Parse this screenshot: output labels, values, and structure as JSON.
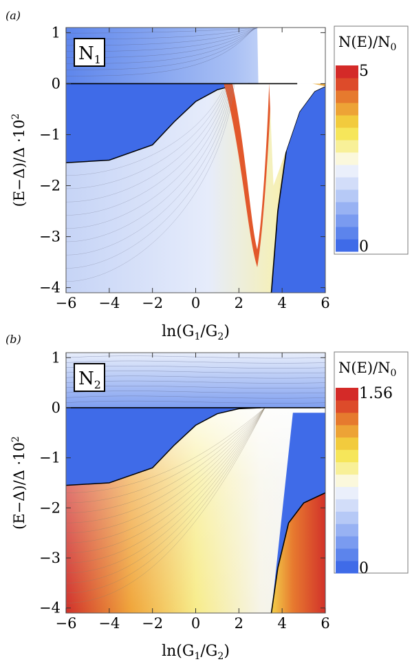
{
  "chart_data": [
    {
      "type": "heatmap",
      "panel_label": "(a)",
      "inset_label": "N",
      "inset_sub": "1",
      "xlabel": {
        "pre": "ln(G",
        "s1": "1",
        "mid": "/G",
        "s2": "2",
        "post": ")"
      },
      "ylabel": {
        "pre": "(E−Δ)/Δ ·10",
        "sup": "2"
      },
      "xlim": [
        -6,
        6
      ],
      "ylim": [
        -4.1,
        1.1
      ],
      "xticks": [
        -6,
        -4,
        -2,
        0,
        2,
        4,
        6
      ],
      "xtick_labels": [
        "−6",
        "−4",
        "−2",
        "0",
        "2",
        "4",
        "6"
      ],
      "yticks": [
        1,
        0,
        -1,
        -2,
        -3,
        -4
      ],
      "ytick_labels": [
        "1",
        "0",
        "−1",
        "−2",
        "−3",
        "−4"
      ],
      "colorbar": {
        "title_pre": "N(E)/N",
        "title_sub": "0",
        "min_label": "0",
        "max_label": "5",
        "min": 0,
        "max": 5
      },
      "gap_boundary": [
        {
          "x": -6,
          "y": -1.55
        },
        {
          "x": -4,
          "y": -1.5
        },
        {
          "x": -2,
          "y": -1.2
        },
        {
          "x": -1,
          "y": -0.75
        },
        {
          "x": 0,
          "y": -0.35
        },
        {
          "x": 1,
          "y": -0.12
        },
        {
          "x": 1.8,
          "y": -0.03
        },
        {
          "x": 2.5,
          "y": 0
        }
      ],
      "singular_region_min": {
        "x": 2.85,
        "y": -3.25
      },
      "right_gap_edge": [
        {
          "x": 3.5,
          "y": -4.1
        },
        {
          "x": 3.8,
          "y": -2.5
        },
        {
          "x": 4.2,
          "y": -1.3
        },
        {
          "x": 4.8,
          "y": -0.55
        },
        {
          "x": 5.5,
          "y": -0.15
        },
        {
          "x": 6,
          "y": -0.05
        }
      ]
    },
    {
      "type": "heatmap",
      "panel_label": "(b)",
      "inset_label": "N",
      "inset_sub": "2",
      "xlabel": {
        "pre": "ln(G",
        "s1": "1",
        "mid": "/G",
        "s2": "2",
        "post": ")"
      },
      "ylabel": {
        "pre": "(E−Δ)/Δ ·10",
        "sup": "2"
      },
      "xlim": [
        -6,
        6
      ],
      "ylim": [
        -4.1,
        1.1
      ],
      "xticks": [
        -6,
        -4,
        -2,
        0,
        2,
        4,
        6
      ],
      "xtick_labels": [
        "−6",
        "−4",
        "−2",
        "0",
        "2",
        "4",
        "6"
      ],
      "yticks": [
        1,
        0,
        -1,
        -2,
        -3,
        -4
      ],
      "ytick_labels": [
        "1",
        "0",
        "−1",
        "−2",
        "−3",
        "−4"
      ],
      "colorbar": {
        "title_pre": "N(E)/N",
        "title_sub": "0",
        "min_label": "0",
        "max_label": "1.56",
        "min": 0,
        "max": 1.56
      },
      "gap_boundary": [
        {
          "x": -6,
          "y": -1.55
        },
        {
          "x": -4,
          "y": -1.5
        },
        {
          "x": -2,
          "y": -1.2
        },
        {
          "x": -1,
          "y": -0.75
        },
        {
          "x": 0,
          "y": -0.35
        },
        {
          "x": 1,
          "y": -0.12
        },
        {
          "x": 2,
          "y": -0.02
        },
        {
          "x": 3,
          "y": 0
        }
      ],
      "right_gap_edge": [
        {
          "x": 3.5,
          "y": -4.1
        },
        {
          "x": 3.8,
          "y": -3.2
        },
        {
          "x": 4.3,
          "y": -2.3
        },
        {
          "x": 5,
          "y": -1.9
        },
        {
          "x": 6,
          "y": -1.7
        }
      ]
    }
  ],
  "colors": {
    "gap_blue": "#3f6be8",
    "colorbar_scale": [
      "#3f6be8",
      "#5c84ec",
      "#7a9bf0",
      "#98b2f3",
      "#b6c9f6",
      "#d2ddf9",
      "#eaeffb",
      "#fbf8dc",
      "#f8f098",
      "#f6e65a",
      "#f2cb3d",
      "#eda336",
      "#e67a2e",
      "#dd4b2a",
      "#d42a28"
    ]
  }
}
